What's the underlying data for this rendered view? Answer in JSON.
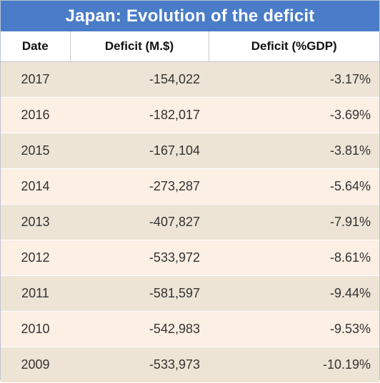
{
  "chart_data": {
    "type": "table",
    "title": "Japan: Evolution of the deficit",
    "columns": [
      "Date",
      "Deficit (M.$)",
      "Deficit (%GDP)"
    ],
    "rows": [
      [
        "2017",
        "-154,022",
        "-3.17%"
      ],
      [
        "2016",
        "-182,017",
        "-3.69%"
      ],
      [
        "2015",
        "-167,104",
        "-3.81%"
      ],
      [
        "2014",
        "-273,287",
        "-5.64%"
      ],
      [
        "2013",
        "-407,827",
        "-7.91%"
      ],
      [
        "2012",
        "-533,972",
        "-8.61%"
      ],
      [
        "2011",
        "-581,597",
        "-9.44%"
      ],
      [
        "2010",
        "-542,983",
        "-9.53%"
      ],
      [
        "2009",
        "-533,973",
        "-10.19%"
      ]
    ]
  },
  "colors": {
    "title_bar": "#4a7cc7",
    "row_odd": "#ede4d5",
    "row_even": "#fcefe4"
  }
}
